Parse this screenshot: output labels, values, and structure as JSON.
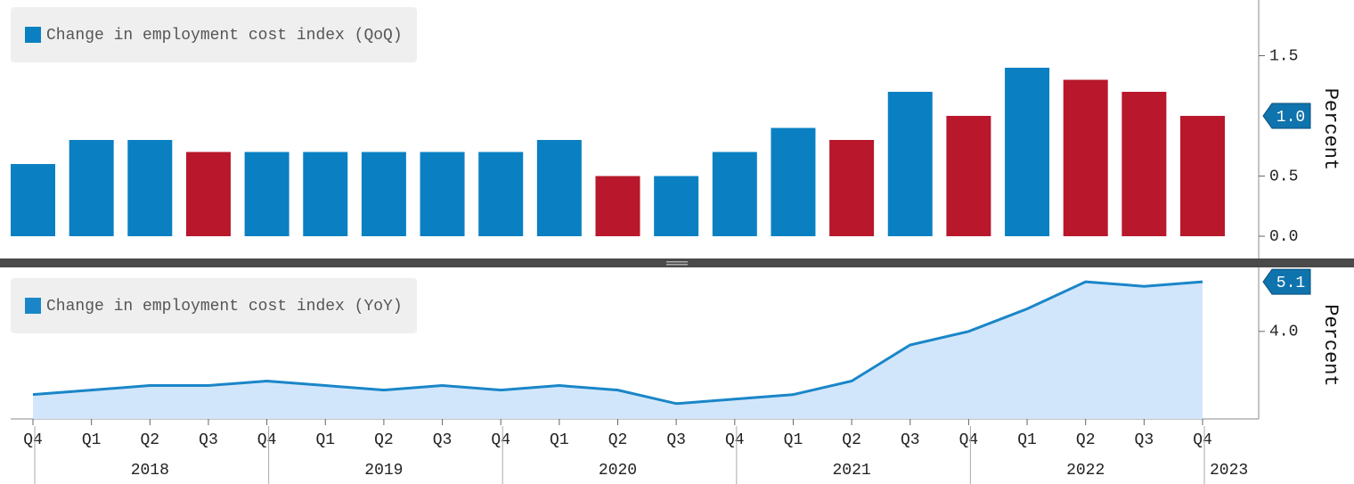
{
  "chart_data": [
    {
      "type": "bar",
      "legend": "Change in employment cost index (QoQ)",
      "y_label": "Percent",
      "color": "#0a80c2",
      "values": [
        0.6,
        0.8,
        0.8,
        0.7,
        0.7,
        0.7,
        0.7,
        0.7,
        0.7,
        0.8,
        0.5,
        0.5,
        0.7,
        0.9,
        0.8,
        1.2,
        1.0,
        1.4,
        1.3,
        1.2,
        1.0
      ],
      "colors": [
        "#0a80c2",
        "#0a80c2",
        "#0a80c2",
        "#b8172c",
        "#0a80c2",
        "#0a80c2",
        "#0a80c2",
        "#0a80c2",
        "#0a80c2",
        "#0a80c2",
        "#b8172c",
        "#0a80c2",
        "#0a80c2",
        "#0a80c2",
        "#b8172c",
        "#0a80c2",
        "#b8172c",
        "#0a80c2",
        "#b8172c",
        "#b8172c",
        "#b8172c"
      ],
      "value_labels": [
        null,
        null,
        null,
        null,
        null,
        null,
        null,
        null,
        null,
        null,
        null,
        null,
        null,
        null,
        null,
        null,
        null,
        null,
        null,
        null,
        "1.0"
      ],
      "ylim": [
        -0.185,
        1.963
      ],
      "yticks": [
        {
          "value": 0,
          "label": "0.0"
        },
        {
          "value": 0.5,
          "label": "0.5"
        },
        {
          "value": 1.5,
          "label": "1.5"
        }
      ]
    },
    {
      "type": "area",
      "legend": "Change in employment cost index (YoY)",
      "y_label": "Percent",
      "color": "#1a86c8",
      "fill": "#d2e6fb",
      "categories": [
        "Q4",
        "Q1",
        "Q2",
        "Q3",
        "Q4",
        "Q1",
        "Q2",
        "Q3",
        "Q4",
        "Q1",
        "Q2",
        "Q3",
        "Q4",
        "Q1",
        "Q2",
        "Q3",
        "Q4",
        "Q1",
        "Q2",
        "Q3",
        "Q4"
      ],
      "years": [
        "2018",
        "2019",
        "2020",
        "2021",
        "2022",
        "2023"
      ],
      "values": [
        2.6,
        2.7,
        2.8,
        2.8,
        2.9,
        2.8,
        2.7,
        2.8,
        2.7,
        2.8,
        2.7,
        2.4,
        2.5,
        2.6,
        2.9,
        3.7,
        4.0,
        4.5,
        5.1,
        5.0,
        5.1
      ],
      "value_labels": [
        null,
        null,
        null,
        null,
        null,
        null,
        null,
        null,
        null,
        null,
        null,
        null,
        null,
        null,
        null,
        null,
        null,
        null,
        null,
        null,
        "5.1"
      ],
      "ylim": [
        2.06,
        5.32
      ],
      "yticks": [
        {
          "value": 4,
          "label": "4.0"
        }
      ]
    }
  ]
}
